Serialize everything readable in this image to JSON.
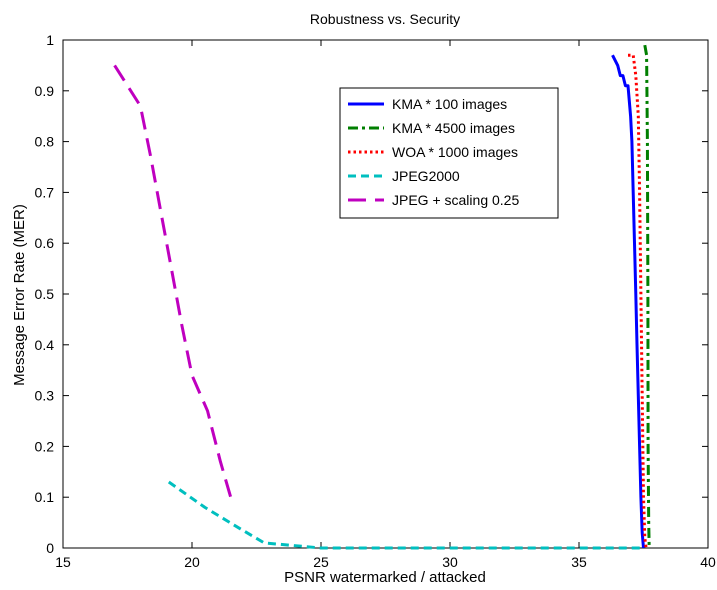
{
  "chart_data": {
    "type": "line",
    "title": "Robustness vs. Security",
    "xlabel": "PSNR watermarked / attacked",
    "ylabel": "Message Error Rate (MER)",
    "xlim": [
      15,
      40
    ],
    "ylim": [
      0,
      1
    ],
    "xticks": [
      15,
      20,
      25,
      30,
      35,
      40
    ],
    "yticks": [
      0,
      0.1,
      0.2,
      0.3,
      0.4,
      0.5,
      0.6,
      0.7,
      0.8,
      0.9,
      1
    ],
    "grid": false,
    "legend_position": "upper-center-right",
    "series": [
      {
        "name": "KMA * 100 images",
        "color": "#0000ff",
        "style": "solid",
        "x": [
          36.3,
          36.5,
          36.6,
          36.7,
          36.8,
          36.9,
          37.0,
          37.05,
          37.1,
          37.15,
          37.2,
          37.25,
          37.3,
          37.35,
          37.4,
          37.45,
          37.5
        ],
        "y": [
          0.97,
          0.95,
          0.93,
          0.93,
          0.91,
          0.91,
          0.85,
          0.8,
          0.7,
          0.6,
          0.5,
          0.4,
          0.3,
          0.2,
          0.1,
          0.03,
          0.0
        ]
      },
      {
        "name": "KMA * 4500 images",
        "color": "#007f00",
        "style": "dashdot",
        "x": [
          37.55,
          37.62,
          37.65,
          37.67,
          37.68,
          37.7,
          37.72
        ],
        "y": [
          0.99,
          0.97,
          0.8,
          0.5,
          0.2,
          0.05,
          0.0
        ]
      },
      {
        "name": "WOA * 1000 images",
        "color": "#ff0000",
        "style": "dotted",
        "x": [
          36.9,
          37.1,
          37.2,
          37.3,
          37.35,
          37.4,
          37.45,
          37.5,
          37.55,
          37.6
        ],
        "y": [
          0.97,
          0.97,
          0.93,
          0.85,
          0.7,
          0.5,
          0.3,
          0.1,
          0.02,
          0.0
        ]
      },
      {
        "name": "JPEG2000",
        "color": "#00bfbf",
        "style": "dashed",
        "x": [
          19.1,
          20.5,
          21.8,
          22.8,
          25.0,
          30.0,
          35.0,
          37.5
        ],
        "y": [
          0.13,
          0.08,
          0.04,
          0.01,
          0.0,
          0.0,
          0.0,
          0.0
        ]
      },
      {
        "name": "JPEG + scaling 0.25",
        "color": "#bf00bf",
        "style": "longdash",
        "x": [
          17.0,
          17.5,
          18.0,
          18.4,
          18.8,
          19.2,
          19.6,
          20.0,
          20.6,
          21.1,
          21.5
        ],
        "y": [
          0.95,
          0.91,
          0.87,
          0.77,
          0.66,
          0.55,
          0.44,
          0.34,
          0.27,
          0.17,
          0.1
        ]
      }
    ]
  }
}
